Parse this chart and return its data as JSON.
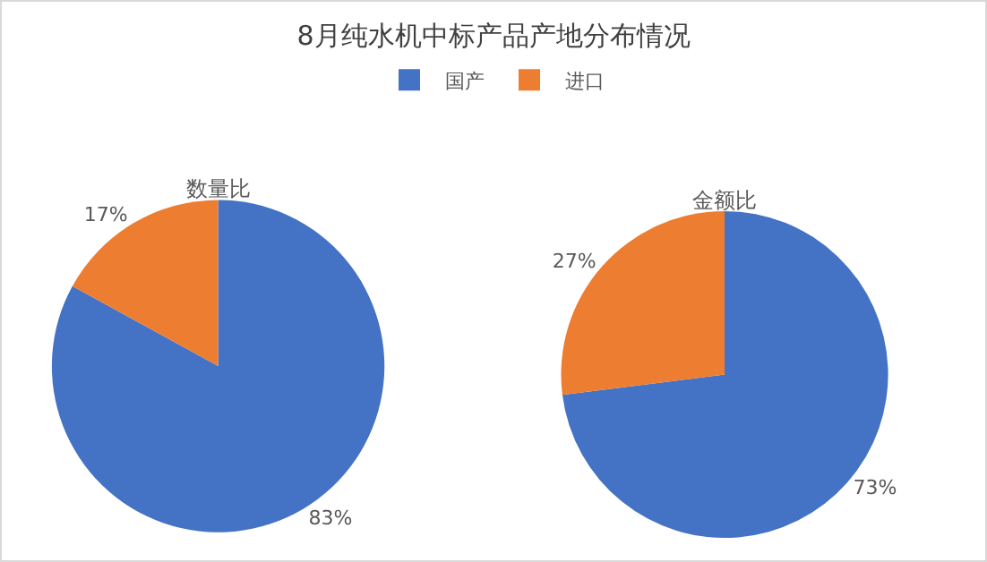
{
  "chart_data": {
    "type": "pie",
    "title": "8月纯水机中标产品产地分布情况",
    "categories": [
      "国产",
      "进口"
    ],
    "colors": [
      "#4472c4",
      "#ed7d31"
    ],
    "legend": "top",
    "series": [
      {
        "name": "数量比",
        "values": [
          83,
          17
        ],
        "value_labels": [
          "83%",
          "17%"
        ]
      },
      {
        "name": "金额比",
        "values": [
          73,
          27
        ],
        "value_labels": [
          "73%",
          "27%"
        ]
      }
    ]
  }
}
